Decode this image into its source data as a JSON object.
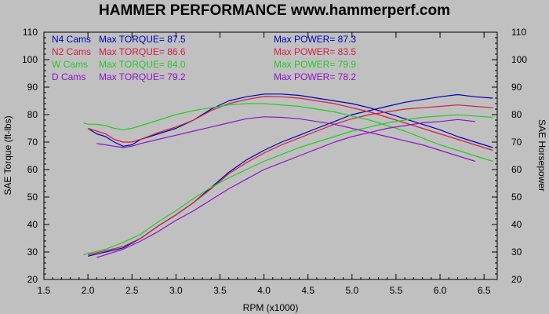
{
  "chart_data": {
    "type": "line",
    "title": "HAMMER PERFORMANCE www.hammerperf.com",
    "xlabel": "RPM (x1000)",
    "ylabel_left": "SAE Torque (ft-lbs)",
    "ylabel_right": "SAE Horsepower",
    "xlim": [
      1.5,
      6.65
    ],
    "ylim": [
      20,
      110
    ],
    "x_ticks": [
      "1.5",
      "2.0",
      "2.5",
      "3.0",
      "3.5",
      "4.0",
      "4.5",
      "5.0",
      "5.5",
      "6.0",
      "6.5"
    ],
    "y_ticks": [
      "20",
      "30",
      "40",
      "50",
      "60",
      "70",
      "80",
      "90",
      "100",
      "110"
    ],
    "grid": false,
    "legend_position": "top-left",
    "background_color": "#c0c0c0",
    "plot_background_color": "#c0c0c0",
    "series": [
      {
        "name": "N4 Cams",
        "color": "#0000b4",
        "torque_label": "Max TORQUE= 87.5",
        "power_label": "Max POWER= 87.3",
        "torque": [
          [
            2.0,
            75
          ],
          [
            2.1,
            73
          ],
          [
            2.2,
            72
          ],
          [
            2.3,
            70
          ],
          [
            2.4,
            68.5
          ],
          [
            2.5,
            69
          ],
          [
            2.6,
            71
          ],
          [
            2.8,
            73
          ],
          [
            3.0,
            75
          ],
          [
            3.2,
            78
          ],
          [
            3.4,
            82
          ],
          [
            3.6,
            85
          ],
          [
            3.8,
            86.5
          ],
          [
            4.0,
            87.5
          ],
          [
            4.2,
            87.5
          ],
          [
            4.4,
            87
          ],
          [
            4.6,
            86
          ],
          [
            4.8,
            85
          ],
          [
            5.0,
            84
          ],
          [
            5.2,
            82.5
          ],
          [
            5.4,
            80.5
          ],
          [
            5.6,
            78.5
          ],
          [
            5.8,
            76.5
          ],
          [
            6.0,
            74.5
          ],
          [
            6.2,
            72
          ],
          [
            6.4,
            70
          ],
          [
            6.6,
            68
          ]
        ],
        "power": [
          [
            2.0,
            28.5
          ],
          [
            2.2,
            30
          ],
          [
            2.4,
            31.5
          ],
          [
            2.6,
            35
          ],
          [
            2.8,
            39.5
          ],
          [
            3.0,
            43.5
          ],
          [
            3.2,
            48
          ],
          [
            3.4,
            53.5
          ],
          [
            3.6,
            59
          ],
          [
            3.8,
            63.5
          ],
          [
            4.0,
            67
          ],
          [
            4.2,
            70
          ],
          [
            4.4,
            72.5
          ],
          [
            4.6,
            75
          ],
          [
            4.8,
            77.5
          ],
          [
            5.0,
            80
          ],
          [
            5.2,
            81.5
          ],
          [
            5.4,
            83
          ],
          [
            5.6,
            84.5
          ],
          [
            5.8,
            85.5
          ],
          [
            6.0,
            86.5
          ],
          [
            6.2,
            87.3
          ],
          [
            6.4,
            86.5
          ],
          [
            6.6,
            86
          ]
        ]
      },
      {
        "name": "N2 Cams",
        "color": "#d21e46",
        "torque_label": "Max TORQUE= 86.6",
        "power_label": "Max POWER= 83.5",
        "torque": [
          [
            2.0,
            75
          ],
          [
            2.1,
            74
          ],
          [
            2.2,
            73
          ],
          [
            2.3,
            71
          ],
          [
            2.4,
            70
          ],
          [
            2.5,
            70
          ],
          [
            2.6,
            71
          ],
          [
            2.8,
            73.5
          ],
          [
            3.0,
            75.5
          ],
          [
            3.2,
            78
          ],
          [
            3.4,
            81.5
          ],
          [
            3.6,
            84
          ],
          [
            3.8,
            85.5
          ],
          [
            4.0,
            86.6
          ],
          [
            4.2,
            86.5
          ],
          [
            4.4,
            86
          ],
          [
            4.6,
            85
          ],
          [
            4.8,
            84
          ],
          [
            5.0,
            82.5
          ],
          [
            5.2,
            81
          ],
          [
            5.4,
            79
          ],
          [
            5.6,
            77
          ],
          [
            5.8,
            75
          ],
          [
            6.0,
            73
          ],
          [
            6.2,
            71
          ],
          [
            6.4,
            69
          ],
          [
            6.6,
            67
          ]
        ],
        "power": [
          [
            2.0,
            29
          ],
          [
            2.2,
            30.5
          ],
          [
            2.4,
            32
          ],
          [
            2.6,
            35
          ],
          [
            2.8,
            39.5
          ],
          [
            3.0,
            43.5
          ],
          [
            3.2,
            48
          ],
          [
            3.4,
            53
          ],
          [
            3.6,
            58.5
          ],
          [
            3.8,
            62.5
          ],
          [
            4.0,
            66
          ],
          [
            4.2,
            69
          ],
          [
            4.4,
            71.5
          ],
          [
            4.6,
            74
          ],
          [
            4.8,
            76.5
          ],
          [
            5.0,
            78.5
          ],
          [
            5.2,
            80
          ],
          [
            5.4,
            81
          ],
          [
            5.6,
            82
          ],
          [
            5.8,
            82.5
          ],
          [
            6.0,
            83
          ],
          [
            6.2,
            83.5
          ],
          [
            6.4,
            83
          ],
          [
            6.6,
            82.5
          ]
        ]
      },
      {
        "name": "W Cams",
        "color": "#28c828",
        "torque_label": "Max TORQUE= 84.0",
        "power_label": "Max POWER= 79.9",
        "torque": [
          [
            1.95,
            77
          ],
          [
            2.0,
            76.5
          ],
          [
            2.1,
            76.5
          ],
          [
            2.2,
            76
          ],
          [
            2.3,
            75
          ],
          [
            2.4,
            74.5
          ],
          [
            2.5,
            75
          ],
          [
            2.6,
            76
          ],
          [
            2.8,
            78
          ],
          [
            3.0,
            80
          ],
          [
            3.2,
            81.5
          ],
          [
            3.4,
            82.5
          ],
          [
            3.6,
            83.5
          ],
          [
            3.8,
            84
          ],
          [
            4.0,
            84
          ],
          [
            4.2,
            83.5
          ],
          [
            4.4,
            83
          ],
          [
            4.6,
            82
          ],
          [
            4.8,
            81
          ],
          [
            5.0,
            79.5
          ],
          [
            5.2,
            78
          ],
          [
            5.4,
            76
          ],
          [
            5.6,
            74
          ],
          [
            5.8,
            71.5
          ],
          [
            6.0,
            69
          ],
          [
            6.2,
            67
          ],
          [
            6.4,
            65
          ],
          [
            6.6,
            63
          ]
        ],
        "power": [
          [
            1.95,
            29
          ],
          [
            2.0,
            29.5
          ],
          [
            2.2,
            31
          ],
          [
            2.4,
            33.5
          ],
          [
            2.6,
            36.5
          ],
          [
            2.8,
            41
          ],
          [
            3.0,
            45
          ],
          [
            3.2,
            49.5
          ],
          [
            3.4,
            53.5
          ],
          [
            3.6,
            57
          ],
          [
            3.8,
            60
          ],
          [
            4.0,
            63
          ],
          [
            4.2,
            65.5
          ],
          [
            4.4,
            68
          ],
          [
            4.6,
            70
          ],
          [
            4.8,
            72
          ],
          [
            5.0,
            74
          ],
          [
            5.2,
            75.5
          ],
          [
            5.4,
            77
          ],
          [
            5.6,
            78
          ],
          [
            5.8,
            79
          ],
          [
            6.0,
            79.5
          ],
          [
            6.2,
            79.9
          ],
          [
            6.4,
            79.5
          ],
          [
            6.6,
            79
          ]
        ]
      },
      {
        "name": "D Cams",
        "color": "#8c14c8",
        "torque_label": "Max TORQUE= 79.2",
        "power_label": "Max POWER= 78.2",
        "torque": [
          [
            2.1,
            69.5
          ],
          [
            2.2,
            69
          ],
          [
            2.3,
            68.5
          ],
          [
            2.4,
            68
          ],
          [
            2.5,
            68.5
          ],
          [
            2.6,
            69.5
          ],
          [
            2.8,
            71
          ],
          [
            3.0,
            72.5
          ],
          [
            3.2,
            74
          ],
          [
            3.4,
            75.5
          ],
          [
            3.6,
            77
          ],
          [
            3.8,
            78.5
          ],
          [
            4.0,
            79.2
          ],
          [
            4.2,
            79
          ],
          [
            4.4,
            78.5
          ],
          [
            4.6,
            77.5
          ],
          [
            4.8,
            76.5
          ],
          [
            5.0,
            75
          ],
          [
            5.2,
            73.5
          ],
          [
            5.4,
            72
          ],
          [
            5.6,
            70.5
          ],
          [
            5.8,
            69
          ],
          [
            6.0,
            67
          ],
          [
            6.2,
            65
          ],
          [
            6.4,
            63
          ]
        ],
        "power": [
          [
            2.1,
            28
          ],
          [
            2.2,
            29
          ],
          [
            2.4,
            31
          ],
          [
            2.6,
            34
          ],
          [
            2.8,
            37.5
          ],
          [
            3.0,
            41.5
          ],
          [
            3.2,
            45
          ],
          [
            3.4,
            49
          ],
          [
            3.6,
            53
          ],
          [
            3.8,
            56.5
          ],
          [
            4.0,
            60
          ],
          [
            4.2,
            62.5
          ],
          [
            4.4,
            65
          ],
          [
            4.6,
            67.5
          ],
          [
            4.8,
            70
          ],
          [
            5.0,
            72
          ],
          [
            5.2,
            73.5
          ],
          [
            5.4,
            75
          ],
          [
            5.6,
            76
          ],
          [
            5.8,
            77
          ],
          [
            6.0,
            77.5
          ],
          [
            6.2,
            78.2
          ],
          [
            6.4,
            77.5
          ]
        ]
      }
    ]
  }
}
